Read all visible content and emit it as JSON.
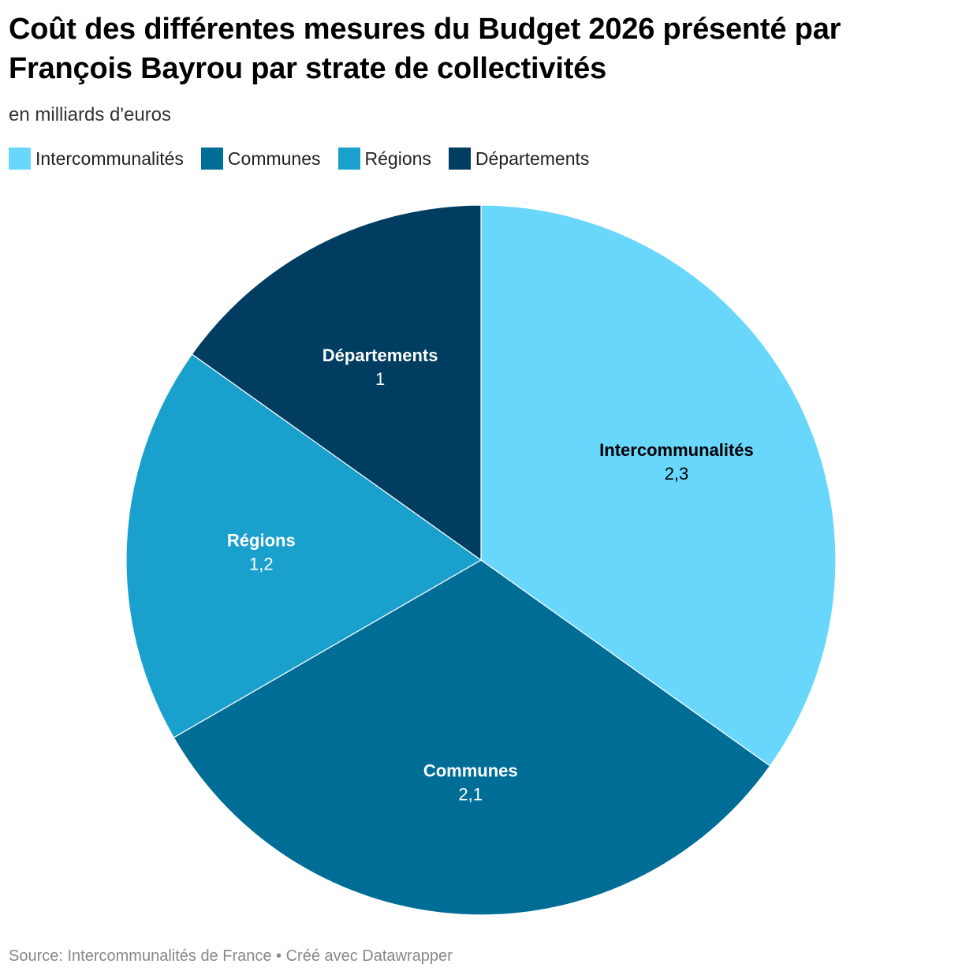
{
  "header": {
    "title": "Coût des différentes mesures du Budget 2026 présenté par François Bayrou par strate de collectivités",
    "subtitle": "en milliards d'euros"
  },
  "footer": {
    "source": "Source: Intercommunalités de France • Créé avec Datawrapper"
  },
  "chart_data": {
    "type": "pie",
    "title": "Coût des différentes mesures du Budget 2026 présenté par François Bayrou par strate de collectivités",
    "subtitle": "en milliards d'euros",
    "legend_position": "top-left",
    "slices": [
      {
        "label": "Intercommunalités",
        "value": 2.3,
        "value_label": "2,3",
        "color": "#69d7fc",
        "text_color": "#000000"
      },
      {
        "label": "Communes",
        "value": 2.1,
        "value_label": "2,1",
        "color": "#006d96",
        "text_color": "#ffffff"
      },
      {
        "label": "Régions",
        "value": 1.2,
        "value_label": "1,2",
        "color": "#1aa0cd",
        "text_color": "#ffffff"
      },
      {
        "label": "Départements",
        "value": 1,
        "value_label": "1",
        "color": "#003d61",
        "text_color": "#ffffff"
      }
    ]
  }
}
